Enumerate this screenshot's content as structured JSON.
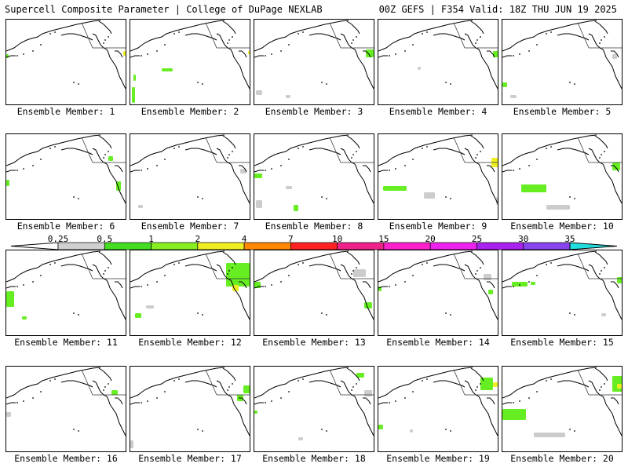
{
  "header": {
    "left": "Supercell Composite Parameter | College of DuPage NEXLAB",
    "right": "00Z GEFS | F354 Valid: 18Z THU JUN 19 2025"
  },
  "member_label_prefix": "Ensemble Member: ",
  "members": [
    1,
    2,
    3,
    4,
    5,
    6,
    7,
    8,
    9,
    10,
    11,
    12,
    13,
    14,
    15,
    16,
    17,
    18,
    19,
    20
  ],
  "colorbar": {
    "ticks": [
      "0.25",
      "0.5",
      "1",
      "2",
      "4",
      "7",
      "10",
      "15",
      "20",
      "25",
      "30",
      "35"
    ],
    "colors": [
      "#d0d0d0",
      "#44dd22",
      "#88ee22",
      "#eeee22",
      "#ff8800",
      "#ff2222",
      "#ee2288",
      "#ff22cc",
      "#ee22ee",
      "#aa22ee",
      "#8844ee",
      "#22dddd"
    ]
  },
  "colors": {
    "coast": "#000000",
    "border": "#333333",
    "low_scp": "#cccccc",
    "mid_scp": "#66ee22",
    "high_scp": "#eeee22"
  }
}
